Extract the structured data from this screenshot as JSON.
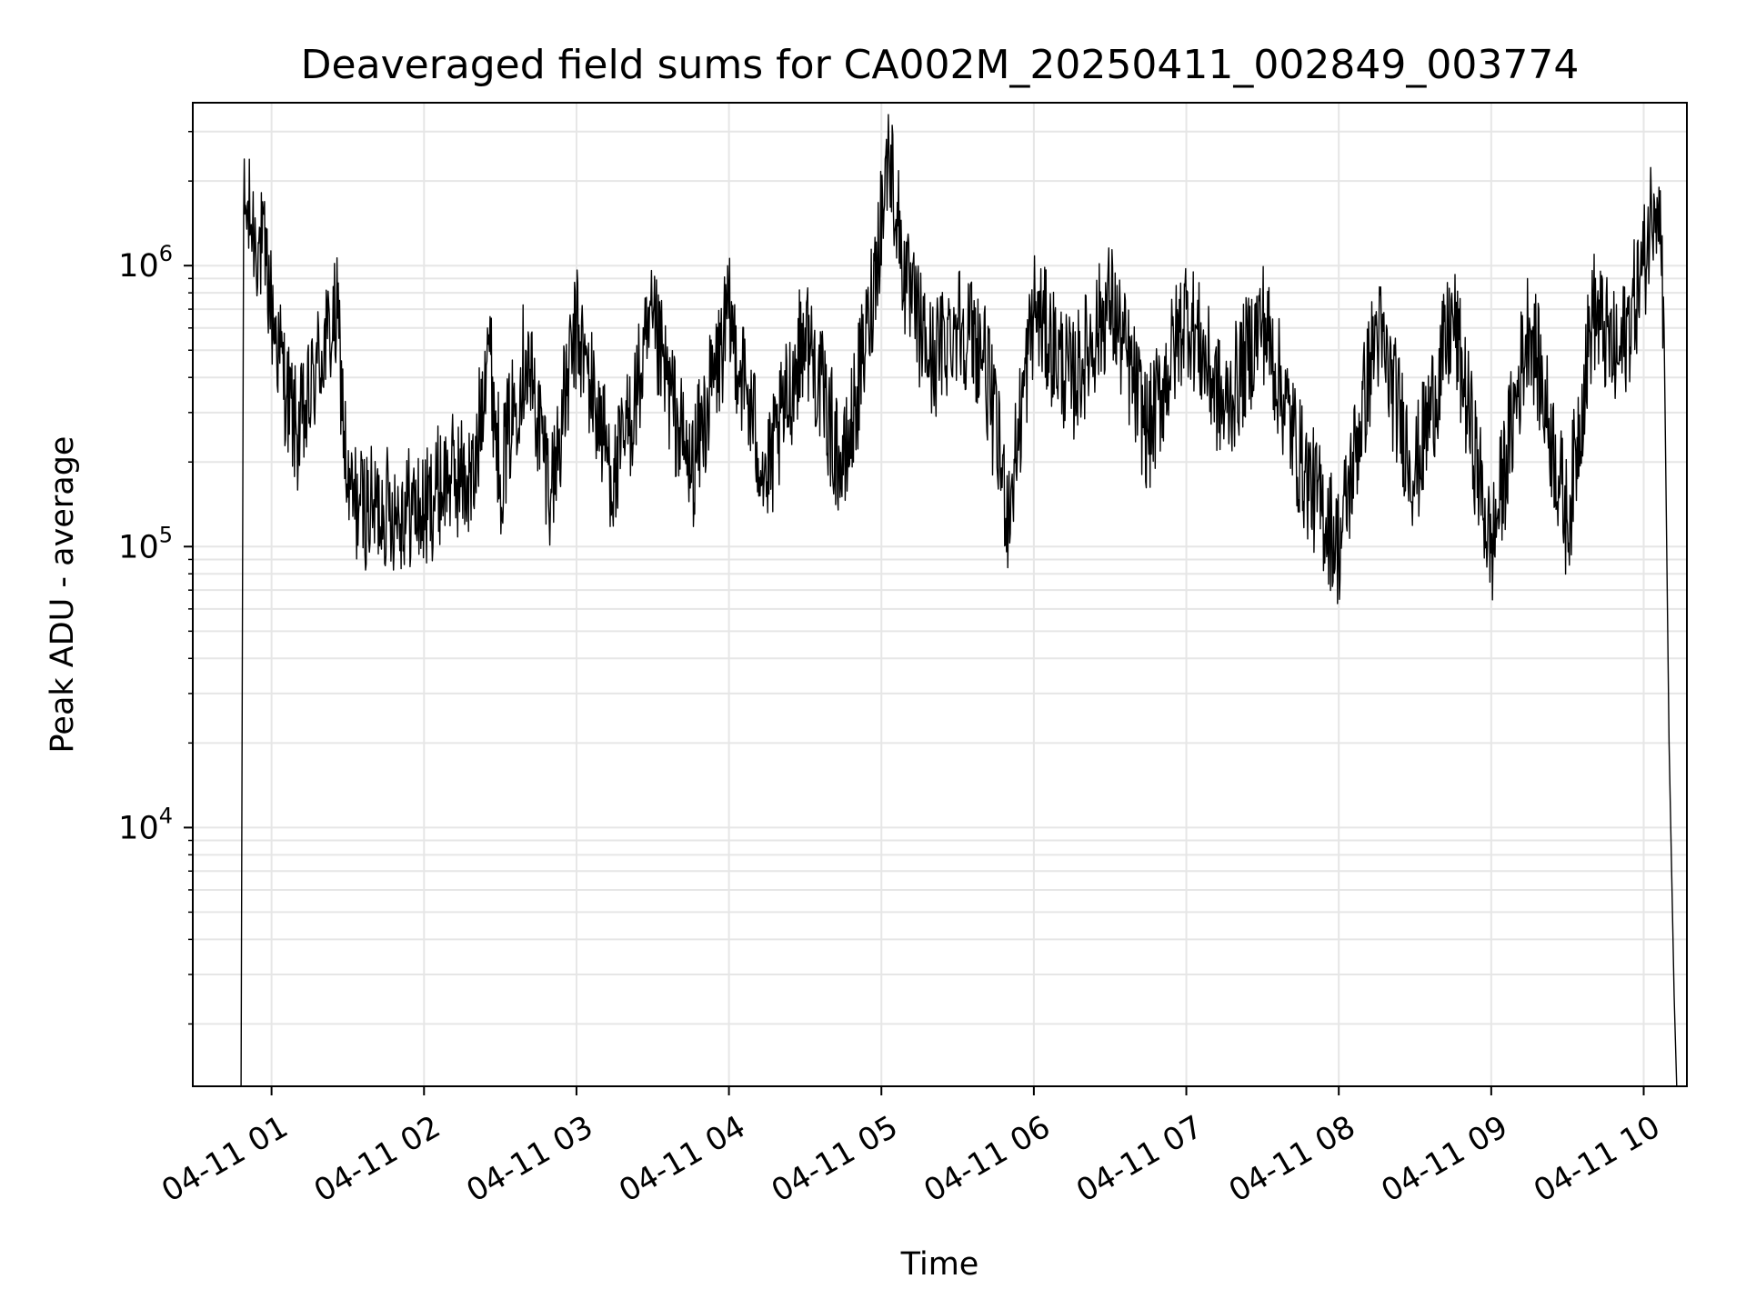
{
  "chart_data": {
    "type": "line",
    "title": "Deaveraged field sums for CA002M_20250411_002849_003774",
    "xlabel": "Time",
    "ylabel": "Peak ADU - average",
    "yscale": "log",
    "grid": true,
    "line_color": "#000000",
    "grid_color": "#e6e6e6",
    "xlim": [
      "2025-04-11 00:29",
      "2025-04-11 10:17"
    ],
    "ylim": [
      1200,
      3800000
    ],
    "x_ticks": [
      "04-11 01",
      "04-11 02",
      "04-11 03",
      "04-11 04",
      "04-11 05",
      "04-11 06",
      "04-11 07",
      "04-11 08",
      "04-11 09",
      "04-11 10"
    ],
    "y_ticks": [
      {
        "base": "10",
        "exp": "4",
        "value": 10000
      },
      {
        "base": "10",
        "exp": "5",
        "value": 100000
      },
      {
        "base": "10",
        "exp": "6",
        "value": 1000000
      }
    ],
    "series": [
      {
        "x": [
          "2025-04-11 00:48",
          "2025-04-11 00:49",
          "2025-04-11 00:50",
          "2025-04-11 00:52",
          "2025-04-11 00:55",
          "2025-04-11 00:58",
          "2025-04-11 01:00",
          "2025-04-11 01:03",
          "2025-04-11 01:06",
          "2025-04-11 01:10",
          "2025-04-11 01:14",
          "2025-04-11 01:18",
          "2025-04-11 01:22",
          "2025-04-11 01:26",
          "2025-04-11 01:30",
          "2025-04-11 01:35",
          "2025-04-11 01:40",
          "2025-04-11 01:44",
          "2025-04-11 01:50",
          "2025-04-11 01:55",
          "2025-04-11 02:00",
          "2025-04-11 02:05",
          "2025-04-11 02:10",
          "2025-04-11 02:15",
          "2025-04-11 02:20",
          "2025-04-11 02:25",
          "2025-04-11 02:30",
          "2025-04-11 02:40",
          "2025-04-11 02:50",
          "2025-04-11 03:00",
          "2025-04-11 03:15",
          "2025-04-11 03:30",
          "2025-04-11 03:45",
          "2025-04-11 04:00",
          "2025-04-11 04:15",
          "2025-04-11 04:30",
          "2025-04-11 04:45",
          "2025-04-11 04:55",
          "2025-04-11 05:03",
          "2025-04-11 05:10",
          "2025-04-11 05:20",
          "2025-04-11 05:30",
          "2025-04-11 05:40",
          "2025-04-11 05:50",
          "2025-04-11 06:00",
          "2025-04-11 06:15",
          "2025-04-11 06:30",
          "2025-04-11 06:45",
          "2025-04-11 07:00",
          "2025-04-11 07:15",
          "2025-04-11 07:30",
          "2025-04-11 07:45",
          "2025-04-11 08:00",
          "2025-04-11 08:15",
          "2025-04-11 08:30",
          "2025-04-11 08:45",
          "2025-04-11 09:00",
          "2025-04-11 09:15",
          "2025-04-11 09:30",
          "2025-04-11 09:40",
          "2025-04-11 09:50",
          "2025-04-11 10:00",
          "2025-04-11 10:04",
          "2025-04-11 10:06",
          "2025-04-11 10:08",
          "2025-04-11 10:10",
          "2025-04-11 10:12",
          "2025-04-11 10:13"
        ],
        "y": [
          1200,
          1500000,
          1550000,
          1400000,
          1200000,
          1000000,
          700000,
          500000,
          350000,
          250000,
          300000,
          450000,
          550000,
          650000,
          150000,
          140000,
          135000,
          140000,
          135000,
          140000,
          130000,
          160000,
          180000,
          175000,
          170000,
          600000,
          180000,
          500000,
          160000,
          600000,
          170000,
          600000,
          180000,
          650000,
          170000,
          600000,
          180000,
          620000,
          2600000,
          800000,
          450000,
          650000,
          500000,
          130000,
          700000,
          380000,
          750000,
          250000,
          700000,
          300000,
          650000,
          200000,
          100000,
          600000,
          180000,
          650000,
          95000,
          650000,
          120000,
          700000,
          450000,
          1000000,
          1800000,
          1900000,
          600000,
          20000,
          2500,
          1200
        ]
      }
    ]
  }
}
